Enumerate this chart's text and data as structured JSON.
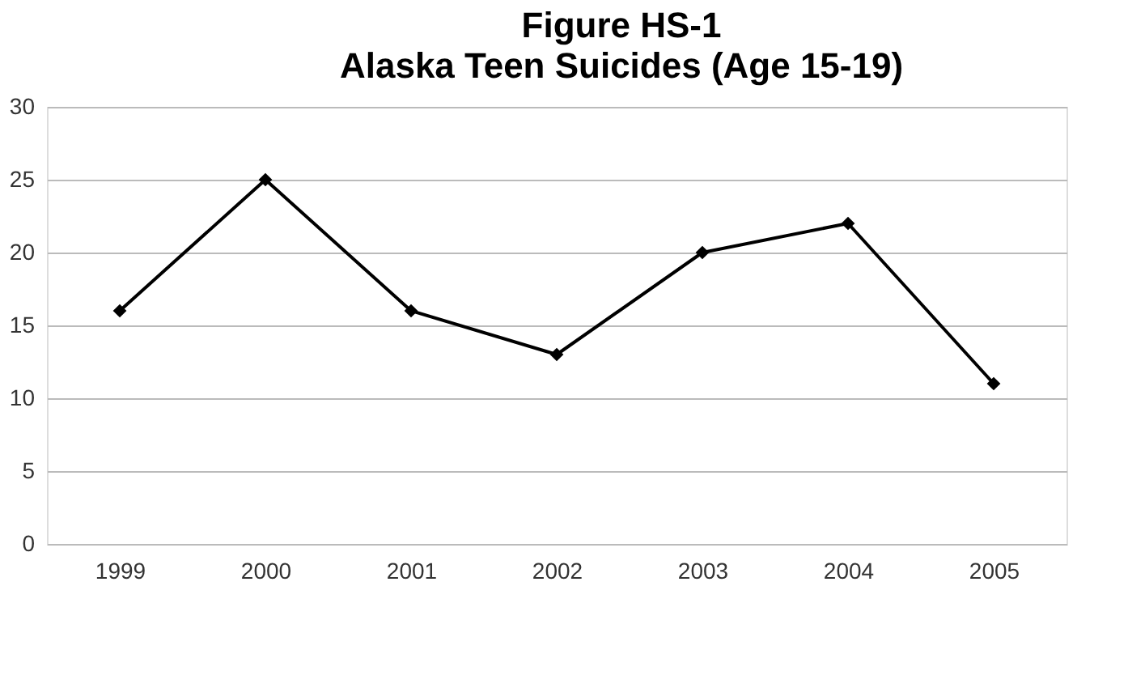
{
  "chart_data": {
    "type": "line",
    "title": "Figure HS-1",
    "subtitle": "Alaska Teen Suicides (Age 15-19)",
    "categories": [
      "1999",
      "2000",
      "2001",
      "2002",
      "2003",
      "2004",
      "2005"
    ],
    "series": [
      {
        "color": "#000000",
        "values": [
          16,
          25,
          16,
          13,
          20,
          22,
          11
        ]
      }
    ],
    "ylim": [
      0,
      30
    ],
    "yticks": [
      0,
      5,
      10,
      15,
      20,
      25,
      30
    ],
    "grid": "y",
    "marker": "diamond",
    "line_style": "solid"
  }
}
